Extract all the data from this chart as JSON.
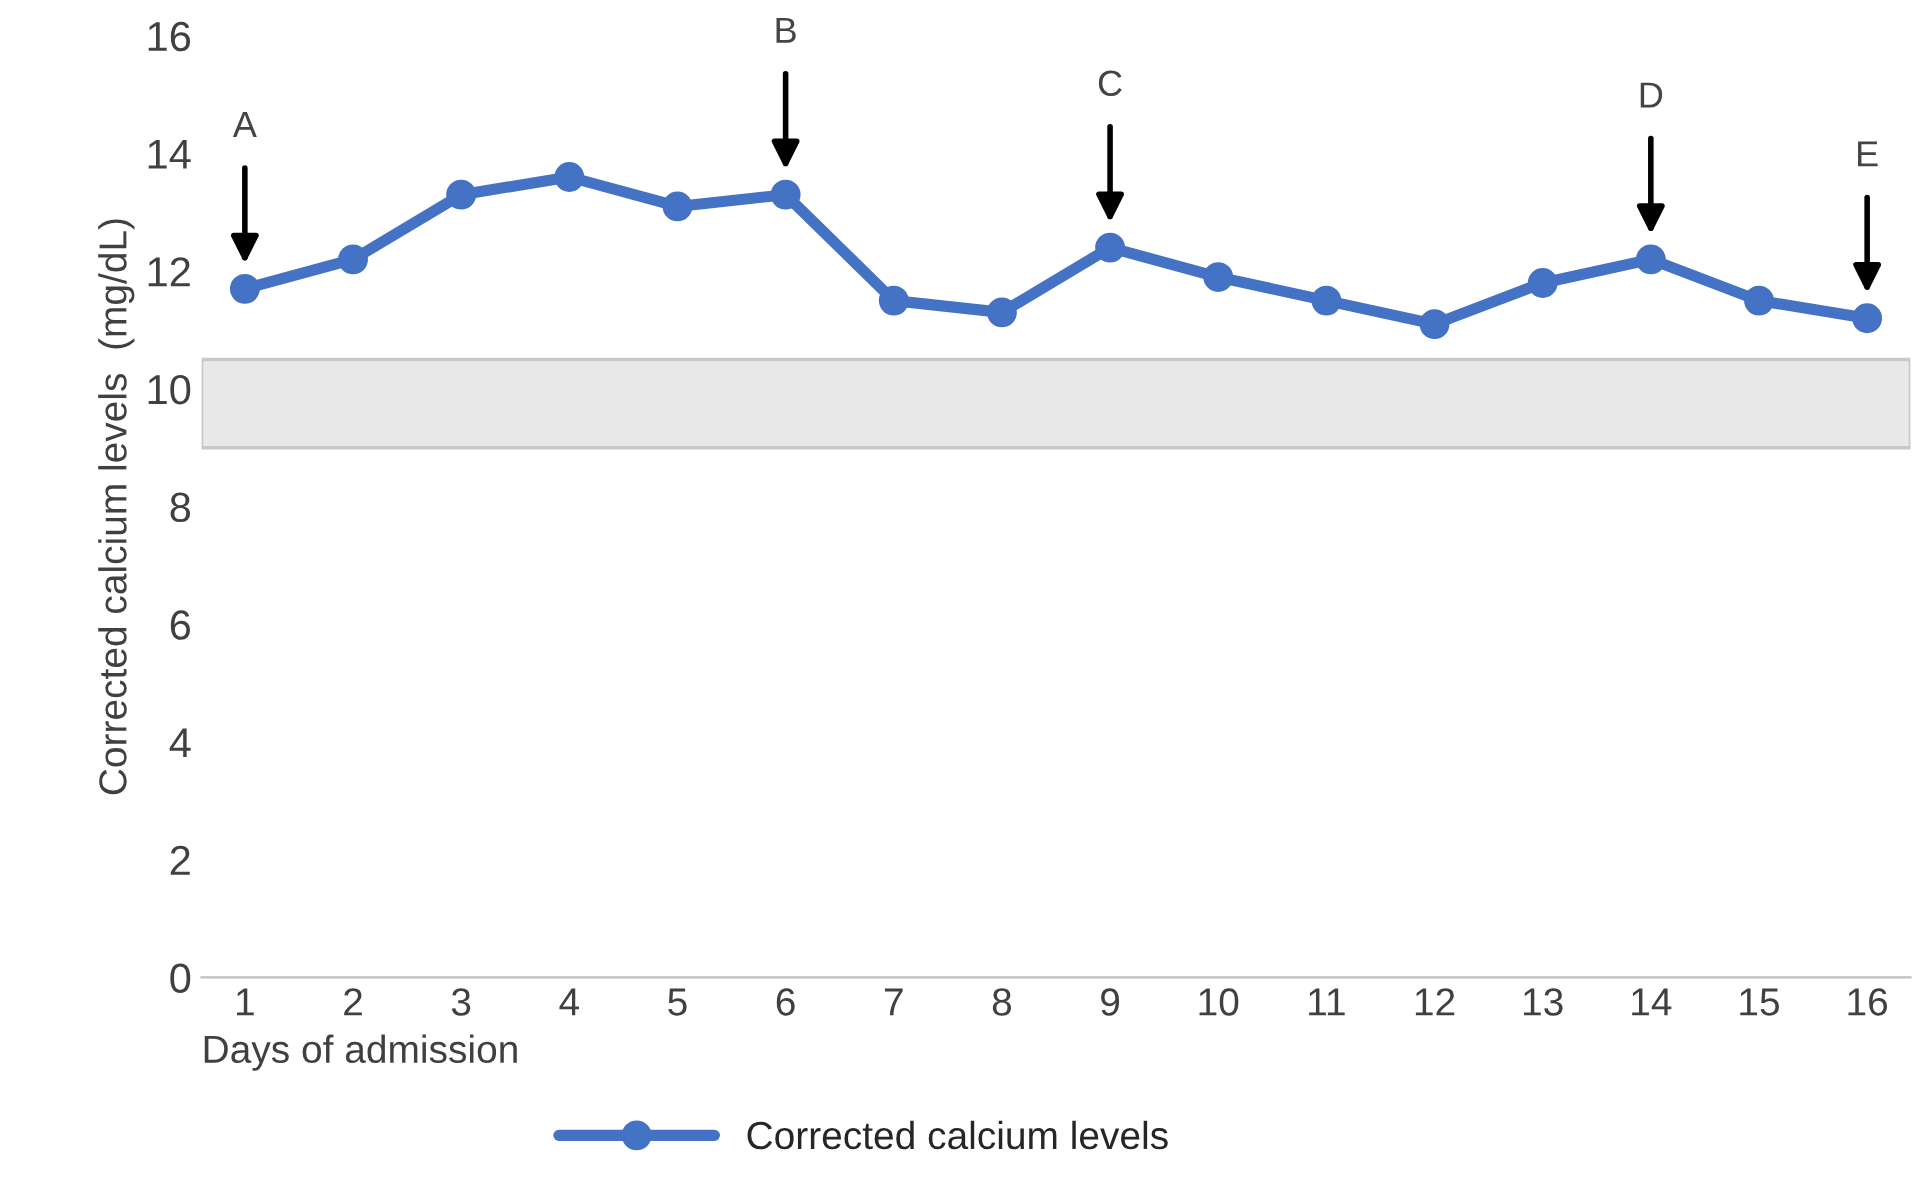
{
  "chart_data": {
    "type": "line",
    "xlabel": "Days of admission",
    "ylabel": "Corrected calcium levels  (mg/dL)",
    "categories": [
      "1",
      "2",
      "3",
      "4",
      "5",
      "6",
      "7",
      "8",
      "9",
      "10",
      "11",
      "12",
      "13",
      "14",
      "15",
      "16"
    ],
    "series": [
      {
        "name": "Corrected calcium levels",
        "color": "#4472c4",
        "values": [
          11.7,
          12.2,
          13.3,
          13.6,
          13.1,
          13.3,
          11.5,
          11.3,
          12.4,
          11.9,
          11.5,
          11.1,
          11.8,
          12.2,
          11.5,
          11.2
        ]
      }
    ],
    "ylim": [
      0,
      16
    ],
    "yticks": [
      0,
      2,
      4,
      6,
      8,
      10,
      12,
      14,
      16
    ],
    "bands": [
      {
        "axis": "y",
        "from": 9,
        "to": 10.5,
        "color": "#e8e8e8"
      }
    ],
    "annotations": [
      {
        "text": "A",
        "x": "1"
      },
      {
        "text": "B",
        "x": "6"
      },
      {
        "text": "C",
        "x": "9"
      },
      {
        "text": "D",
        "x": "14"
      },
      {
        "text": "E",
        "x": "16"
      }
    ],
    "marker": "circle",
    "line_style": "solid",
    "grid": false,
    "legend": "bottom"
  }
}
